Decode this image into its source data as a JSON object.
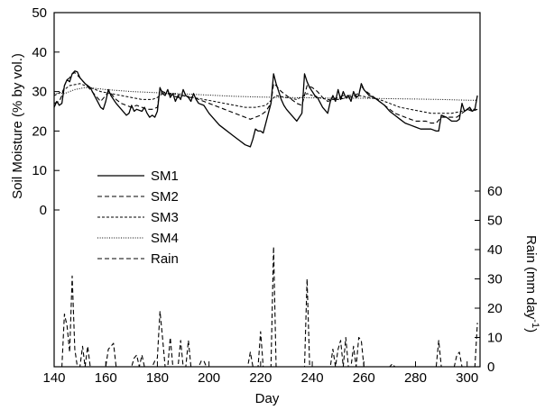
{
  "chart_data": {
    "type": "line",
    "xlabel": "Day",
    "ylabel_left": "Soil Moisture (% by vol.)",
    "ylabel_right": {
      "main": "Rain (mm day",
      "sup": "-1",
      "close": ")"
    },
    "xlim": [
      140,
      305
    ],
    "ylim_left": [
      0,
      50
    ],
    "ylim_right": [
      0,
      60
    ],
    "x_ticks": [
      140,
      160,
      180,
      200,
      220,
      240,
      260,
      280,
      300
    ],
    "y_left_ticks": [
      0,
      10,
      20,
      30,
      40,
      50
    ],
    "y_right_ticks": [
      0,
      10,
      20,
      30,
      40,
      50,
      60
    ],
    "legend_placement": "middle-left",
    "series": [
      {
        "name": "SM1",
        "style": "solid",
        "color": "#000000",
        "x": [
          140,
          141,
          142,
          143,
          144,
          145,
          146,
          147,
          148,
          149,
          150,
          152,
          154,
          156,
          158,
          159,
          160,
          161,
          162,
          164,
          166,
          168,
          169,
          170,
          171,
          172,
          174,
          175,
          176,
          177,
          178,
          179,
          180,
          181,
          182,
          183,
          184,
          185,
          186,
          187,
          188,
          189,
          190,
          191,
          192,
          193,
          194,
          195,
          196,
          198,
          200,
          202,
          204,
          206,
          208,
          210,
          212,
          214,
          216,
          217,
          218,
          219,
          220,
          221,
          222,
          223,
          224,
          225,
          226,
          227,
          228,
          229,
          230,
          232,
          234,
          236,
          237,
          238,
          239,
          240,
          241,
          242,
          244,
          246,
          247,
          248,
          249,
          250,
          251,
          252,
          253,
          254,
          255,
          256,
          257,
          258,
          259,
          260,
          262,
          264,
          266,
          268,
          270,
          272,
          274,
          276,
          278,
          280,
          282,
          284,
          286,
          288,
          289,
          290,
          292,
          294,
          296,
          297,
          298,
          299,
          300,
          301,
          302,
          303,
          304
        ],
        "y": [
          26.0,
          27.5,
          26.5,
          27.0,
          31.5,
          33.0,
          32.5,
          34.5,
          35.2,
          35.0,
          33.5,
          32.0,
          31.0,
          28.5,
          26.0,
          25.5,
          27.5,
          30.5,
          29.0,
          27.0,
          25.5,
          24.0,
          24.5,
          26.5,
          25.0,
          25.5,
          25.0,
          26.0,
          24.5,
          23.5,
          24.0,
          23.5,
          25.0,
          31.0,
          29.5,
          29.0,
          30.5,
          28.5,
          29.5,
          27.5,
          29.0,
          28.0,
          30.5,
          29.0,
          28.5,
          27.5,
          29.5,
          28.0,
          27.0,
          26.5,
          24.5,
          23.0,
          21.5,
          20.5,
          19.5,
          18.5,
          17.5,
          16.5,
          16.0,
          18.0,
          20.5,
          20.0,
          20.0,
          19.5,
          22.0,
          24.5,
          27.0,
          34.5,
          32.0,
          30.0,
          28.0,
          26.5,
          25.5,
          24.0,
          22.5,
          24.5,
          34.5,
          32.5,
          31.0,
          30.0,
          29.0,
          28.5,
          26.0,
          24.5,
          27.5,
          29.0,
          27.5,
          30.5,
          28.0,
          30.0,
          28.5,
          29.0,
          27.5,
          30.0,
          28.5,
          29.0,
          32.0,
          30.5,
          29.0,
          28.5,
          27.5,
          26.5,
          25.0,
          24.0,
          23.0,
          22.0,
          21.5,
          21.0,
          20.5,
          20.5,
          20.5,
          20.0,
          20.0,
          24.0,
          23.5,
          22.5,
          22.5,
          23.0,
          27.0,
          25.0,
          25.5,
          26.0,
          25.0,
          25.5,
          29.0
        ]
      },
      {
        "name": "SM2",
        "style": "dashed",
        "color": "#000000",
        "x": [
          140,
          142,
          143,
          144,
          145,
          146,
          147,
          148,
          150,
          152,
          154,
          156,
          158,
          160,
          161,
          162,
          164,
          166,
          168,
          170,
          172,
          174,
          176,
          178,
          180,
          181,
          182,
          184,
          186,
          188,
          190,
          192,
          194,
          196,
          198,
          200,
          202,
          204,
          206,
          208,
          210,
          212,
          214,
          216,
          218,
          220,
          222,
          224,
          225,
          226,
          228,
          230,
          232,
          234,
          236,
          238,
          240,
          242,
          244,
          246,
          248,
          250,
          252,
          254,
          256,
          258,
          259,
          260,
          262,
          264,
          266,
          268,
          270,
          272,
          274,
          276,
          278,
          280,
          282,
          284,
          286,
          288,
          290,
          292,
          294,
          296,
          298,
          300,
          302,
          304
        ],
        "y": [
          27.0,
          27.5,
          29.0,
          31.5,
          33.0,
          33.5,
          34.5,
          34.8,
          33.5,
          32.0,
          30.5,
          29.0,
          27.5,
          29.0,
          30.0,
          29.5,
          28.0,
          27.0,
          26.5,
          26.0,
          26.5,
          26.0,
          25.5,
          25.5,
          26.0,
          30.5,
          30.0,
          29.5,
          29.0,
          28.5,
          29.0,
          28.5,
          28.5,
          28.0,
          27.5,
          27.0,
          26.5,
          26.0,
          25.5,
          25.0,
          24.5,
          24.0,
          23.5,
          23.0,
          23.5,
          24.0,
          25.0,
          27.0,
          32.0,
          31.5,
          30.0,
          29.0,
          28.0,
          27.0,
          26.5,
          31.5,
          31.0,
          30.0,
          28.5,
          27.5,
          28.0,
          28.5,
          29.0,
          29.0,
          29.0,
          29.5,
          31.5,
          30.5,
          29.5,
          28.5,
          27.5,
          26.5,
          25.5,
          24.5,
          24.0,
          23.5,
          23.0,
          22.5,
          22.5,
          22.5,
          22.0,
          22.0,
          23.5,
          23.5,
          23.5,
          23.5,
          24.5,
          25.5,
          25.0,
          25.5
        ]
      },
      {
        "name": "SM3",
        "style": "dashed-short",
        "color": "#000000",
        "x": [
          140,
          143,
          146,
          150,
          154,
          158,
          162,
          166,
          170,
          174,
          178,
          180,
          182,
          186,
          190,
          194,
          198,
          202,
          206,
          210,
          214,
          218,
          222,
          226,
          230,
          234,
          238,
          242,
          246,
          250,
          254,
          258,
          262,
          266,
          270,
          274,
          278,
          282,
          286,
          290,
          294,
          298,
          302,
          304
        ],
        "y": [
          29.0,
          30.0,
          31.5,
          32.0,
          31.0,
          30.0,
          29.5,
          29.0,
          28.5,
          28.0,
          28.0,
          28.5,
          29.5,
          29.5,
          29.0,
          28.5,
          28.0,
          27.5,
          27.0,
          26.5,
          26.0,
          26.0,
          26.5,
          29.0,
          28.5,
          28.0,
          29.5,
          28.5,
          28.0,
          28.0,
          28.5,
          29.0,
          28.5,
          28.0,
          27.0,
          26.0,
          25.5,
          25.0,
          24.5,
          24.5,
          24.5,
          25.0,
          25.5,
          25.5
        ]
      },
      {
        "name": "SM4",
        "style": "dotted",
        "color": "#000000",
        "x": [
          140,
          144,
          148,
          152,
          156,
          160,
          170,
          180,
          190,
          200,
          210,
          220,
          230,
          240,
          250,
          260,
          270,
          280,
          290,
          300,
          304
        ],
        "y": [
          29.5,
          29.5,
          30.5,
          31.0,
          30.8,
          30.5,
          30.0,
          29.7,
          29.4,
          29.1,
          28.8,
          28.6,
          28.5,
          28.4,
          28.3,
          28.3,
          28.2,
          28.1,
          28.0,
          27.8,
          27.8
        ]
      },
      {
        "name": "Rain",
        "style": "dashed",
        "color": "#000000",
        "axis": "right",
        "x": [
          140,
          143,
          144,
          145,
          146,
          147,
          148,
          149,
          150,
          151,
          152,
          153,
          154,
          155,
          160,
          161,
          162,
          163,
          164,
          170,
          171,
          172,
          173,
          174,
          175,
          178,
          179,
          180,
          181,
          182,
          183,
          184,
          185,
          186,
          187,
          188,
          189,
          190,
          191,
          192,
          193,
          194,
          196,
          197,
          198,
          199,
          200,
          215,
          216,
          217,
          218,
          219,
          220,
          221,
          222,
          223,
          224,
          225,
          226,
          227,
          230,
          236,
          237,
          238,
          239,
          240,
          241,
          242,
          247,
          248,
          249,
          250,
          251,
          252,
          253,
          254,
          255,
          256,
          257,
          258,
          259,
          260,
          261,
          262,
          270,
          271,
          272,
          288,
          289,
          290,
          291,
          294,
          295,
          296,
          297,
          298,
          299,
          300,
          301,
          302,
          303,
          304
        ],
        "y": [
          0,
          0,
          18,
          14,
          5,
          31,
          6,
          0,
          0,
          7,
          0,
          7,
          0,
          0,
          0,
          6,
          7,
          8,
          0,
          0,
          3,
          4,
          0,
          4,
          0,
          0,
          2,
          3,
          19,
          10,
          0,
          0,
          10,
          0,
          0,
          0,
          9,
          0,
          0,
          9,
          0,
          0,
          0,
          2,
          2,
          0,
          0,
          0,
          5,
          0,
          0,
          0,
          12,
          0,
          0,
          0,
          0,
          41,
          0,
          0,
          0,
          0,
          0,
          30,
          0,
          0,
          0,
          0,
          0,
          6,
          0,
          6,
          9,
          0,
          10,
          0,
          0,
          7,
          0,
          10,
          9,
          0,
          0,
          0,
          0,
          1,
          0,
          0,
          9,
          0,
          0,
          0,
          0,
          4,
          5,
          0,
          0,
          0,
          0,
          0,
          0,
          15
        ]
      }
    ]
  }
}
